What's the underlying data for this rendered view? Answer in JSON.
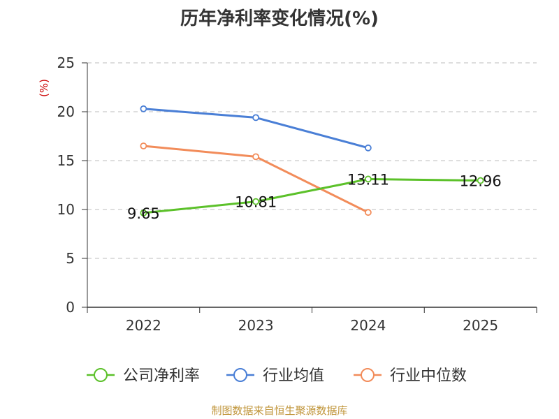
{
  "chart_data": {
    "type": "line",
    "title": "历年净利率变化情况(%)",
    "ylabel": "(%)",
    "categories": [
      "2022",
      "2023",
      "2024",
      "2025"
    ],
    "ylim": [
      0,
      25
    ],
    "yticks": [
      0,
      5,
      10,
      15,
      20,
      25
    ],
    "grid": true,
    "legend_position": "bottom",
    "series": [
      {
        "name": "公司净利率",
        "values": [
          9.65,
          10.81,
          13.11,
          12.96
        ],
        "color": "#5cc12a",
        "labels": [
          "9.65",
          "10.81",
          "13.11",
          "12.96"
        ]
      },
      {
        "name": "行业均值",
        "values": [
          20.3,
          19.4,
          16.3,
          null
        ],
        "color": "#4a7fd6"
      },
      {
        "name": "行业中位数",
        "values": [
          16.5,
          15.4,
          9.7,
          null
        ],
        "color": "#f28c5a"
      }
    ]
  },
  "footer": {
    "source": "制图数据来自恒生聚源数据库"
  }
}
